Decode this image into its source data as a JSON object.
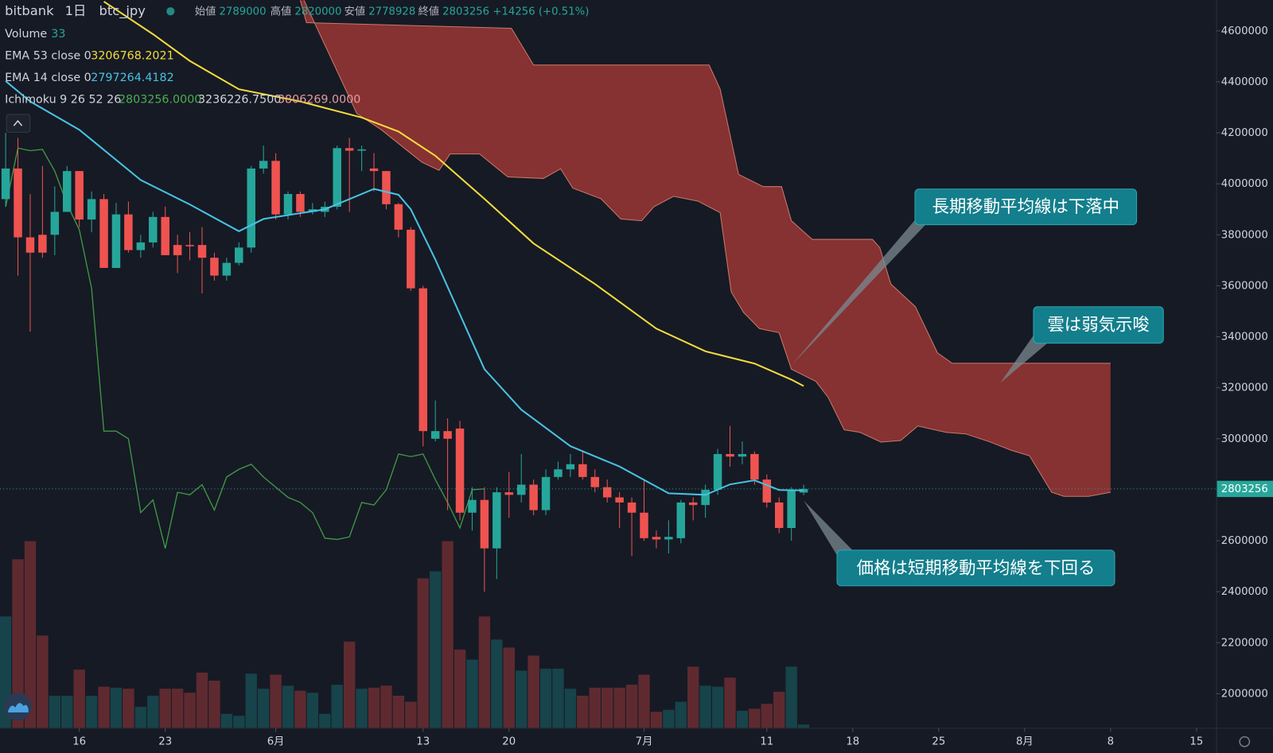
{
  "chart_data": {
    "type": "candlestick",
    "header": {
      "exchange": "bitbank",
      "interval": "1日",
      "symbol": "btc_jpy",
      "open_label": "始値",
      "high_label": "高値",
      "low_label": "安値",
      "close_label": "終値",
      "change": "+14256 (+0.51%)"
    },
    "x": [
      0,
      1,
      2,
      3,
      4,
      5,
      6,
      7,
      8,
      9,
      10,
      11,
      12,
      13,
      14,
      15,
      16,
      17,
      18,
      19,
      20,
      21,
      22,
      23,
      24,
      25,
      26,
      27,
      28,
      29,
      30,
      31,
      32,
      33,
      34,
      35,
      36,
      37,
      38,
      39,
      40,
      41,
      42,
      43,
      44,
      45,
      46,
      47,
      48,
      49,
      50,
      51,
      52,
      53,
      54,
      55,
      56,
      57,
      58,
      59,
      60,
      61,
      62,
      63,
      64,
      65
    ],
    "open": [
      3940000,
      4060000,
      3790000,
      3800000,
      3800000,
      3890000,
      4050000,
      3860000,
      3940000,
      3670000,
      3880000,
      3740000,
      3770000,
      3870000,
      3760000,
      3760000,
      3760000,
      3710000,
      3640000,
      3690000,
      3750000,
      4060000,
      4090000,
      3880000,
      3960000,
      3890000,
      3890000,
      3910000,
      4140000,
      4130000,
      4060000,
      4050000,
      3920000,
      3820000,
      3590000,
      3000000,
      3030000,
      3040000,
      2710000,
      2760000,
      2570000,
      2790000,
      2780000,
      2820000,
      2720000,
      2850000,
      2880000,
      2900000,
      2850000,
      2810000,
      2770000,
      2750000,
      2710000,
      2615000,
      2605000,
      2610000,
      2750000,
      2740000,
      2800000,
      2940000,
      2930000,
      2940000,
      2840000,
      2750000,
      2650000,
      2789000
    ],
    "high": [
      4200000,
      4180000,
      3960000,
      4070000,
      3990000,
      4070000,
      4050000,
      3970000,
      3960000,
      3925000,
      3930000,
      3800000,
      3890000,
      3910000,
      3800000,
      3810000,
      3830000,
      3730000,
      3710000,
      3770000,
      4070000,
      4150000,
      4120000,
      3970000,
      3970000,
      3925000,
      3930000,
      4150000,
      4180000,
      4150000,
      4120000,
      4050000,
      3925000,
      3830000,
      3600000,
      3150000,
      3080000,
      3070000,
      2810000,
      2810000,
      2810000,
      2870000,
      2940000,
      2840000,
      2880000,
      2910000,
      2940000,
      2950000,
      2880000,
      2840000,
      2790000,
      2770000,
      2840000,
      2640000,
      2680000,
      2760000,
      2770000,
      2820000,
      2960000,
      3050000,
      2990000,
      2950000,
      2860000,
      2770000,
      2810000,
      2820000
    ],
    "low": [
      3910000,
      3640000,
      3420000,
      3710000,
      3720000,
      3890000,
      3830000,
      3810000,
      3670000,
      3670000,
      3730000,
      3710000,
      3750000,
      3720000,
      3650000,
      3700000,
      3570000,
      3620000,
      3620000,
      3680000,
      3730000,
      4040000,
      3860000,
      3860000,
      3870000,
      3880000,
      3870000,
      3900000,
      3890000,
      4050000,
      3970000,
      3900000,
      3790000,
      3580000,
      2970000,
      2990000,
      2720000,
      2680000,
      2640000,
      2400000,
      2450000,
      2690000,
      2750000,
      2700000,
      2700000,
      2840000,
      2850000,
      2840000,
      2790000,
      2750000,
      2650000,
      2540000,
      2600000,
      2570000,
      2550000,
      2590000,
      2680000,
      2690000,
      2780000,
      2890000,
      2900000,
      2820000,
      2730000,
      2630000,
      2600000,
      2778928
    ],
    "close": [
      4060000,
      3790000,
      3730000,
      3730000,
      3890000,
      4050000,
      3860000,
      3940000,
      3670000,
      3880000,
      3740000,
      3770000,
      3870000,
      3720000,
      3720000,
      3755000,
      3710000,
      3640000,
      3690000,
      3750000,
      4060000,
      4090000,
      3880000,
      3960000,
      3890000,
      3900000,
      3910000,
      4140000,
      4130000,
      4135000,
      4050000,
      3920000,
      3820000,
      3590000,
      3030000,
      3030000,
      3000000,
      2710000,
      2760000,
      2570000,
      2790000,
      2780000,
      2820000,
      2720000,
      2850000,
      2880000,
      2900000,
      2850000,
      2810000,
      2770000,
      2750000,
      2710000,
      2610000,
      2605000,
      2615000,
      2750000,
      2740000,
      2800000,
      2940000,
      2930000,
      2940000,
      2840000,
      2750000,
      2650000,
      2800000,
      2803256
    ],
    "up_color": "#26a69a",
    "down_color": "#ef5350",
    "volume": {
      "name": "Volume",
      "ylim": [
        0,
        1900
      ],
      "up_color": "#17434a",
      "down_color": "#5e2a30",
      "values": [
        1110,
        1680,
        1860,
        920,
        320,
        320,
        580,
        320,
        410,
        400,
        390,
        210,
        320,
        390,
        390,
        350,
        550,
        470,
        140,
        120,
        540,
        390,
        530,
        420,
        370,
        350,
        140,
        430,
        860,
        390,
        400,
        420,
        320,
        260,
        1490,
        1560,
        1860,
        780,
        680,
        1110,
        880,
        800,
        570,
        720,
        590,
        590,
        390,
        320,
        400,
        400,
        400,
        430,
        530,
        160,
        180,
        260,
        610,
        420,
        410,
        500,
        170,
        190,
        240,
        360,
        610,
        33
      ]
    },
    "series": [
      {
        "name": "EMA 53 close 0",
        "color": "#f5dc3c",
        "x": [
          8,
          12,
          15,
          19,
          24,
          29,
          32,
          35,
          39,
          43,
          48,
          53,
          57,
          61,
          64,
          65
        ],
        "values": [
          4715000,
          4587000,
          4482000,
          4371000,
          4323000,
          4260000,
          4205000,
          4110000,
          3941000,
          3766000,
          3607000,
          3432000,
          3343000,
          3295000,
          3232000,
          3206768.2021
        ]
      },
      {
        "name": "EMA 14 close 0",
        "color": "#48c2e2",
        "x": [
          0,
          2,
          6,
          11,
          15,
          19,
          21,
          26,
          30,
          32,
          33,
          35,
          39,
          42,
          46,
          50,
          54,
          57,
          59,
          61,
          63,
          65
        ],
        "values": [
          4403000,
          4323000,
          4212000,
          4015000,
          3919000,
          3814000,
          3862000,
          3900000,
          3980000,
          3957000,
          3900000,
          3703000,
          3273000,
          3114000,
          2971000,
          2891000,
          2786000,
          2780000,
          2821000,
          2837000,
          2799000,
          2797264.4182
        ]
      }
    ],
    "ichimoku": {
      "name": "Ichimoku 9 26 52 26",
      "readouts": [
        "2803256.0000",
        "3236226.7500",
        "3806269.0000"
      ],
      "lagging_color": "#3f9a45",
      "lagging_offset": 26,
      "cloud_color": "#8c3333",
      "upper": {
        "x": [
          24.0,
          24.5,
          41.2,
          43.0,
          57.3,
          58.2,
          59.7,
          61.7,
          63.2,
          64.0,
          65.7,
          70.6,
          71.2,
          72.1,
          74.1,
          75.9,
          77.1,
          90.0
        ],
        "values": [
          4720000,
          4632000,
          4610000,
          4466000,
          4466000,
          4371000,
          4037000,
          3989000,
          3989000,
          3855000,
          3782000,
          3782000,
          3750000,
          3607000,
          3518000,
          3337000,
          3296000,
          3296000
        ]
      },
      "lower": {
        "x": [
          24.3,
          28.0,
          28.6,
          30.6,
          33.9,
          35.3,
          36.2,
          38.6,
          40.9,
          43.8,
          45.2,
          46.2,
          48.5,
          50.1,
          51.8,
          52.8,
          54.4,
          56.4,
          58.2,
          59.1,
          60.1,
          61.4,
          63.0,
          64.0,
          66.0,
          67.0,
          68.3,
          69.6,
          71.3,
          72.9,
          74.3,
          76.6,
          78.2,
          80.2,
          81.9,
          83.4,
          85.2,
          86.2,
          88.2,
          90.0
        ],
        "values": [
          4720000,
          4339000,
          4276000,
          4212000,
          4085000,
          4053000,
          4117000,
          4117000,
          4027000,
          4021000,
          4059000,
          3983000,
          3941000,
          3862000,
          3855000,
          3910000,
          3951000,
          3932000,
          3887000,
          3576000,
          3496000,
          3432000,
          3416000,
          3273000,
          3225000,
          3162000,
          3035000,
          3025000,
          2987000,
          2993000,
          3050000,
          3025000,
          3019000,
          2987000,
          2955000,
          2933000,
          2790000,
          2774000,
          2774000,
          2790000
        ]
      }
    },
    "xlim": [
      -0.46,
      98.6
    ],
    "xticks": [
      {
        "value": 6,
        "label": "16"
      },
      {
        "value": 13,
        "label": "23"
      },
      {
        "value": 22,
        "label": "6月"
      },
      {
        "value": 34,
        "label": "13"
      },
      {
        "value": 41,
        "label": "20"
      },
      {
        "value": 52,
        "label": "7月"
      },
      {
        "value": 62,
        "label": "11"
      },
      {
        "value": 69,
        "label": "18"
      },
      {
        "value": 76,
        "label": "25"
      },
      {
        "value": 83,
        "label": "8月"
      },
      {
        "value": 90,
        "label": "8"
      },
      {
        "value": 97,
        "label": "15"
      }
    ],
    "ylim": [
      1866000,
      4721000
    ],
    "yticks": [
      2000000,
      2200000,
      2400000,
      2600000,
      2800000,
      3000000,
      3200000,
      3400000,
      3600000,
      3800000,
      4000000,
      4200000,
      4400000,
      4600000
    ],
    "grid": false,
    "annotations": [
      "長期移動平均線は下落中",
      "雲は弱気示唆",
      "価格は短期移動平均線を下回る"
    ]
  }
}
